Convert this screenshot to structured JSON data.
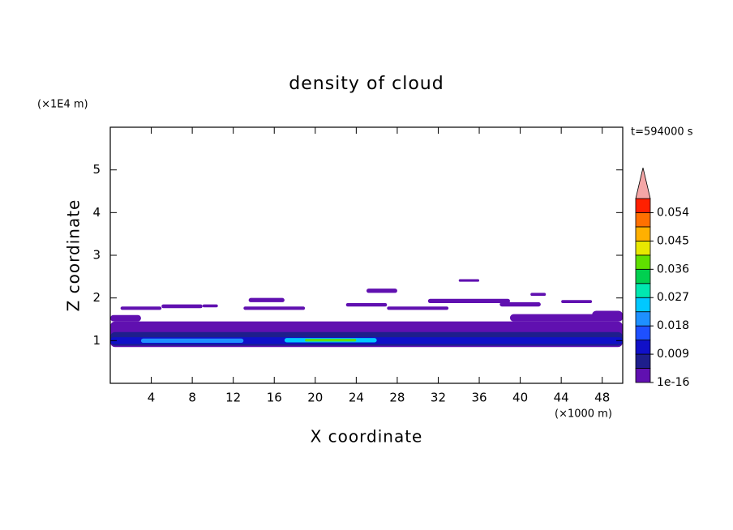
{
  "chart_data": {
    "type": "contour",
    "title": "density of cloud",
    "xlabel": "X coordinate",
    "ylabel": "Z coordinate",
    "xunit": "(×1000 m)",
    "yunit": "(×1E4 m)",
    "time_label": "t=594000 s",
    "xlim": [
      0,
      50
    ],
    "ylim": [
      0,
      6
    ],
    "xticks": [
      4,
      8,
      12,
      16,
      20,
      24,
      28,
      32,
      36,
      40,
      44,
      48
    ],
    "yticks": [
      1,
      2,
      3,
      4,
      5
    ],
    "levels": [
      1e-16,
      0.0045,
      0.009,
      0.0135,
      0.018,
      0.0225,
      0.027,
      0.0315,
      0.036,
      0.0405,
      0.045,
      0.0495,
      0.054,
      0.0585
    ],
    "colors": [
      "#6010b0",
      "#1e1e8c",
      "#1010c8",
      "#1e50ff",
      "#1e90ff",
      "#00c8ff",
      "#00e8b0",
      "#00d050",
      "#60e000",
      "#e8e800",
      "#ffb000",
      "#ff7000",
      "#ff2000"
    ],
    "extend_color": "#f4a6a6",
    "colorbar_ticks": [
      1e-16,
      0.009,
      0.018,
      0.027,
      0.036,
      0.045,
      0.054
    ],
    "regions": [
      {
        "x": [
          0,
          50
        ],
        "z": [
          0.85,
          1.45
        ],
        "value": 0.002
      },
      {
        "x": [
          0,
          3
        ],
        "z": [
          1.45,
          1.6
        ],
        "value": 0.002
      },
      {
        "x": [
          39,
          50
        ],
        "z": [
          1.45,
          1.62
        ],
        "value": 0.002
      },
      {
        "x": [
          47,
          50
        ],
        "z": [
          1.5,
          1.7
        ],
        "value": 0.002
      },
      {
        "x": [
          1,
          5
        ],
        "z": [
          1.72,
          1.8
        ],
        "value": 0.002
      },
      {
        "x": [
          5,
          9
        ],
        "z": [
          1.76,
          1.85
        ],
        "value": 0.002
      },
      {
        "x": [
          9,
          10.5
        ],
        "z": [
          1.78,
          1.85
        ],
        "value": 0.002
      },
      {
        "x": [
          13.5,
          17
        ],
        "z": [
          1.9,
          2.0
        ],
        "value": 0.002
      },
      {
        "x": [
          13,
          19
        ],
        "z": [
          1.72,
          1.8
        ],
        "value": 0.002
      },
      {
        "x": [
          23,
          27
        ],
        "z": [
          1.8,
          1.88
        ],
        "value": 0.002
      },
      {
        "x": [
          25,
          28
        ],
        "z": [
          2.12,
          2.22
        ],
        "value": 0.002
      },
      {
        "x": [
          27,
          33
        ],
        "z": [
          1.72,
          1.8
        ],
        "value": 0.002
      },
      {
        "x": [
          31,
          39
        ],
        "z": [
          1.88,
          1.98
        ],
        "value": 0.002
      },
      {
        "x": [
          34,
          36
        ],
        "z": [
          2.38,
          2.44
        ],
        "value": 0.002
      },
      {
        "x": [
          38,
          42
        ],
        "z": [
          1.8,
          1.9
        ],
        "value": 0.002
      },
      {
        "x": [
          41,
          42.5
        ],
        "z": [
          2.05,
          2.12
        ],
        "value": 0.002
      },
      {
        "x": [
          44,
          47
        ],
        "z": [
          1.88,
          1.95
        ],
        "value": 0.002
      },
      {
        "x": [
          0,
          50
        ],
        "z": [
          0.88,
          1.2
        ],
        "value": 0.006
      },
      {
        "x": [
          0,
          50
        ],
        "z": [
          0.92,
          1.08
        ],
        "value": 0.012
      },
      {
        "x": [
          3,
          13
        ],
        "z": [
          0.95,
          1.05
        ],
        "value": 0.02
      },
      {
        "x": [
          17,
          26
        ],
        "z": [
          0.96,
          1.06
        ],
        "value": 0.025
      },
      {
        "x": [
          19,
          24
        ],
        "z": [
          0.98,
          1.04
        ],
        "value": 0.04
      }
    ]
  }
}
